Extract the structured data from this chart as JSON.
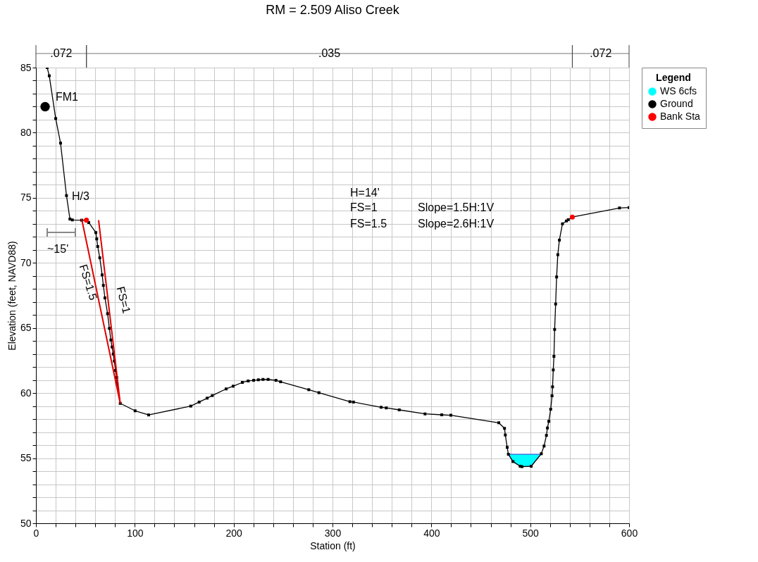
{
  "chart_data": {
    "type": "line",
    "title": "RM = 2.509  Aliso Creek",
    "xlabel": "Station (ft)",
    "ylabel": "Elevation (feet, NAVD88)",
    "legend_title": "Legend",
    "xlim": [
      0,
      600
    ],
    "ylim": [
      50,
      85
    ],
    "xticks": [
      0,
      {
        "value": 20,
        "label": null
      },
      {
        "value": 40,
        "label": null
      },
      {
        "value": 60,
        "label": null
      },
      {
        "value": 80,
        "label": null
      },
      100,
      {
        "value": 120,
        "label": null
      },
      {
        "value": 140,
        "label": null
      },
      {
        "value": 160,
        "label": null
      },
      {
        "value": 180,
        "label": null
      },
      200,
      {
        "value": 220,
        "label": null
      },
      {
        "value": 240,
        "label": null
      },
      {
        "value": 260,
        "label": null
      },
      {
        "value": 280,
        "label": null
      },
      300,
      {
        "value": 320,
        "label": null
      },
      {
        "value": 340,
        "label": null
      },
      {
        "value": 360,
        "label": null
      },
      {
        "value": 380,
        "label": null
      },
      400,
      {
        "value": 420,
        "label": null
      },
      {
        "value": 440,
        "label": null
      },
      {
        "value": 460,
        "label": null
      },
      {
        "value": 480,
        "label": null
      },
      500,
      {
        "value": 520,
        "label": null
      },
      {
        "value": 540,
        "label": null
      },
      {
        "value": 560,
        "label": null
      },
      {
        "value": 580,
        "label": null
      },
      600
    ],
    "yticks": [
      50,
      {
        "value": 51,
        "label": null
      },
      {
        "value": 52,
        "label": null
      },
      {
        "value": 53,
        "label": null
      },
      {
        "value": 54,
        "label": null
      },
      55,
      {
        "value": 56,
        "label": null
      },
      {
        "value": 57,
        "label": null
      },
      {
        "value": 58,
        "label": null
      },
      {
        "value": 59,
        "label": null
      },
      60,
      {
        "value": 61,
        "label": null
      },
      {
        "value": 62,
        "label": null
      },
      {
        "value": 63,
        "label": null
      },
      {
        "value": 64,
        "label": null
      },
      65,
      {
        "value": 66,
        "label": null
      },
      {
        "value": 67,
        "label": null
      },
      {
        "value": 68,
        "label": null
      },
      {
        "value": 69,
        "label": null
      },
      70,
      {
        "value": 71,
        "label": null
      },
      {
        "value": 72,
        "label": null
      },
      {
        "value": 73,
        "label": null
      },
      {
        "value": 74,
        "label": null
      },
      75,
      {
        "value": 76,
        "label": null
      },
      {
        "value": 77,
        "label": null
      },
      {
        "value": 78,
        "label": null
      },
      {
        "value": 79,
        "label": null
      },
      80,
      {
        "value": 81,
        "label": null
      },
      {
        "value": 82,
        "label": null
      },
      {
        "value": 83,
        "label": null
      },
      {
        "value": 84,
        "label": null
      },
      85
    ],
    "grid": true,
    "legend": "right",
    "series": [
      {
        "name": "WS 6cfs",
        "type": "area",
        "color": "#00ffff",
        "x": [
          477.9,
          482.6,
          489.8,
          491.7,
          501.0,
          511.2
        ],
        "values": [
          55.3,
          55.3,
          55.3,
          55.3,
          55.3,
          55.3
        ]
      },
      {
        "name": "Ground",
        "color": "#000000",
        "marker": "square",
        "x": [
          11.4,
          13.5,
          20.0,
          24.9,
          30.9,
          34.4,
          36.8,
          46.3,
          51.1,
          53.4,
          60.6,
          61.5,
          62.5,
          64.6,
          67.0,
          68.2,
          69.8,
          72.5,
          74.3,
          75.8,
          77.0,
          78.2,
          79.3,
          80.5,
          81.7,
          82.0,
          85.3,
          100.3,
          114.0,
          156.6,
          165.1,
          173.2,
          178.4,
          192.4,
          199.5,
          208.8,
          214.7,
          220.2,
          225.0,
          229.7,
          234.9,
          242.8,
          247.5,
          276.0,
          286.3,
          317.6,
          321.2,
          349.2,
          354.4,
          367.5,
          393.6,
          410.5,
          419.7,
          468.2,
          474.0,
          474.8,
          476.7,
          477.9,
          482.6,
          489.8,
          491.7,
          501.0,
          511.2,
          514.0,
          516.4,
          517.4,
          518.8,
          520.7,
          522.1,
          522.6,
          523.3,
          524.0,
          524.7,
          525.7,
          526.7,
          527.9,
          529.5,
          532.6,
          536.6,
          538.5,
          542.6,
          590.3,
          600
        ],
        "values": [
          85,
          84.37,
          81.09,
          79.2,
          75.17,
          73.37,
          73.3,
          73.28,
          73.28,
          73.1,
          72.33,
          71.84,
          71.26,
          70.39,
          69.08,
          68.27,
          67.31,
          66.1,
          64.97,
          64.08,
          63.54,
          63.0,
          62.46,
          61.74,
          61.2,
          60.75,
          59.21,
          58.64,
          58.32,
          59.0,
          59.31,
          59.61,
          59.81,
          60.32,
          60.53,
          60.82,
          60.93,
          60.98,
          61.02,
          61.05,
          61.05,
          60.98,
          60.87,
          60.26,
          60.03,
          59.34,
          59.31,
          58.91,
          58.86,
          58.71,
          58.4,
          58.33,
          58.3,
          57.72,
          57.29,
          56.78,
          55.83,
          55.3,
          54.74,
          54.38,
          54.35,
          54.38,
          55.34,
          55.93,
          56.75,
          57.32,
          57.83,
          58.76,
          59.79,
          60.48,
          61.78,
          62.82,
          64.89,
          66.84,
          68.92,
          70.63,
          71.75,
          73.0,
          73.22,
          73.32,
          73.52,
          74.22,
          74.25
        ]
      },
      {
        "name": "Bank Sta",
        "type": "scatter",
        "color": "#ff0000",
        "marker": "circle",
        "x": [
          51.1,
          542.6
        ],
        "values": [
          73.28,
          73.52
        ]
      },
      {
        "type": "scatter",
        "color": "#000000",
        "marker": "circle",
        "x": [
          9.3
        ],
        "values": [
          82.0
        ]
      },
      {
        "type": "line",
        "color": "#e00000",
        "x": [
          63.4,
          85.3
        ],
        "values": [
          73.28,
          59.21
        ]
      },
      {
        "type": "line",
        "color": "#e00000",
        "x": [
          46.3,
          85.3
        ],
        "values": [
          73.37,
          59.21
        ]
      }
    ],
    "annotations": [
      ".072",
      ".035",
      ".072",
      "FM1",
      "FS=1",
      "FS=1.5",
      "H=14'",
      "FS=1",
      "Slope=1.5H:1V",
      "FS=1.5",
      "Slope=2.6H:1V",
      "H/3",
      "~15'"
    ]
  }
}
